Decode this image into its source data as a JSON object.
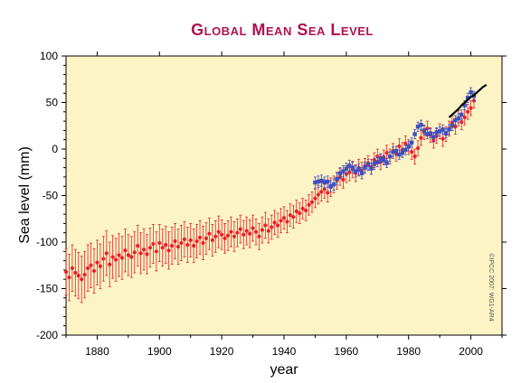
{
  "chart_data": {
    "type": "scatter",
    "title": "Global Mean Sea Level",
    "xlabel": "year",
    "ylabel": "Sea level (mm)",
    "xlim": [
      1870,
      2010
    ],
    "ylim": [
      -200,
      100
    ],
    "xticks": [
      1880,
      1900,
      1920,
      1940,
      1960,
      1980,
      2000
    ],
    "yticks": [
      100,
      50,
      0,
      -50,
      -100,
      -150,
      -200
    ],
    "credit": "©IPCC 2007: WG1-AR4",
    "grid": false,
    "legend": "none",
    "series": [
      {
        "marker": "circle",
        "color": "#e8202a",
        "x": [
          1870,
          1871,
          1872,
          1873,
          1874,
          1875,
          1876,
          1877,
          1878,
          1879,
          1880,
          1881,
          1882,
          1883,
          1884,
          1885,
          1886,
          1887,
          1888,
          1889,
          1890,
          1891,
          1892,
          1893,
          1894,
          1895,
          1896,
          1897,
          1898,
          1899,
          1900,
          1901,
          1902,
          1903,
          1904,
          1905,
          1906,
          1907,
          1908,
          1909,
          1910,
          1911,
          1912,
          1913,
          1914,
          1915,
          1916,
          1917,
          1918,
          1919,
          1920,
          1921,
          1922,
          1923,
          1924,
          1925,
          1926,
          1927,
          1928,
          1929,
          1930,
          1931,
          1932,
          1933,
          1934,
          1935,
          1936,
          1937,
          1938,
          1939,
          1940,
          1941,
          1942,
          1943,
          1944,
          1945,
          1946,
          1947,
          1948,
          1949,
          1950,
          1951,
          1952,
          1953,
          1954,
          1955,
          1956,
          1957,
          1958,
          1959,
          1960,
          1961,
          1962,
          1963,
          1964,
          1965,
          1966,
          1967,
          1968,
          1969,
          1970,
          1971,
          1972,
          1973,
          1974,
          1975,
          1976,
          1977,
          1978,
          1979,
          1980,
          1981,
          1982,
          1983,
          1984,
          1985,
          1986,
          1987,
          1988,
          1989,
          1990,
          1991,
          1992,
          1993,
          1994,
          1995,
          1996,
          1997,
          1998,
          1999,
          2000,
          2001
        ],
        "y": [
          -132,
          -138,
          -128,
          -133,
          -136,
          -140,
          -135,
          -128,
          -125,
          -131,
          -122,
          -126,
          -118,
          -112,
          -124,
          -116,
          -119,
          -114,
          -117,
          -109,
          -114,
          -116,
          -111,
          -104,
          -112,
          -108,
          -113,
          -106,
          -102,
          -110,
          -101,
          -106,
          -103,
          -109,
          -104,
          -99,
          -105,
          -101,
          -97,
          -103,
          -98,
          -104,
          -99,
          -95,
          -101,
          -96,
          -91,
          -98,
          -94,
          -89,
          -92,
          -96,
          -93,
          -89,
          -94,
          -90,
          -86,
          -92,
          -88,
          -91,
          -85,
          -89,
          -94,
          -87,
          -82,
          -88,
          -84,
          -79,
          -82,
          -77,
          -74,
          -78,
          -71,
          -73,
          -67,
          -69,
          -64,
          -66,
          -60,
          -57,
          -53,
          -49,
          -46,
          -43,
          -47,
          -41,
          -38,
          -34,
          -30,
          -33,
          -27,
          -25,
          -22,
          -26,
          -20,
          -23,
          -18,
          -15,
          -19,
          -12,
          -8,
          -14,
          -9,
          -4,
          -8,
          -2,
          -5,
          3,
          -1,
          6,
          2,
          -3,
          -8,
          1,
          12,
          18,
          22,
          15,
          9,
          14,
          19,
          11,
          16,
          22,
          28,
          24,
          33,
          29,
          34,
          40,
          44,
          52
        ],
        "err": [
          25,
          25,
          25,
          25,
          25,
          25,
          25,
          25,
          24,
          24,
          24,
          24,
          24,
          24,
          24,
          23,
          23,
          23,
          23,
          23,
          22,
          22,
          22,
          22,
          22,
          22,
          21,
          21,
          21,
          21,
          20,
          20,
          20,
          20,
          20,
          19,
          19,
          19,
          19,
          19,
          18,
          18,
          18,
          18,
          18,
          17,
          17,
          17,
          17,
          17,
          16,
          16,
          16,
          16,
          16,
          15,
          15,
          15,
          15,
          15,
          14,
          14,
          14,
          14,
          14,
          13,
          13,
          13,
          13,
          13,
          12,
          12,
          12,
          12,
          12,
          11,
          11,
          11,
          11,
          11,
          10,
          10,
          10,
          10,
          10,
          10,
          9,
          9,
          9,
          9,
          9,
          9,
          9,
          9,
          9,
          9,
          8,
          8,
          8,
          8,
          8,
          8,
          8,
          8,
          8,
          8,
          8,
          8,
          8,
          8,
          8,
          8,
          8,
          8,
          8,
          8,
          8,
          8,
          8,
          8,
          8,
          8,
          8,
          8,
          8,
          8,
          8,
          8,
          8,
          8,
          8,
          8
        ]
      },
      {
        "marker": "square",
        "color": "#3c4fc2",
        "x": [
          1950,
          1951,
          1952,
          1953,
          1954,
          1955,
          1956,
          1957,
          1958,
          1959,
          1960,
          1961,
          1962,
          1963,
          1964,
          1965,
          1966,
          1967,
          1968,
          1969,
          1970,
          1971,
          1972,
          1973,
          1974,
          1975,
          1976,
          1977,
          1978,
          1979,
          1980,
          1981,
          1982,
          1983,
          1984,
          1985,
          1986,
          1987,
          1988,
          1989,
          1990,
          1991,
          1992,
          1993,
          1994,
          1995,
          1996,
          1997,
          1998,
          1999,
          2000,
          2001
        ],
        "y": [
          -36,
          -35,
          -34,
          -36,
          -35,
          -40,
          -38,
          -32,
          -26,
          -24,
          -21,
          -18,
          -20,
          -24,
          -22,
          -26,
          -20,
          -17,
          -21,
          -16,
          -14,
          -10,
          -12,
          -15,
          -8,
          -3,
          -2,
          -6,
          -4,
          -1,
          3,
          7,
          16,
          24,
          26,
          20,
          16,
          17,
          13,
          18,
          19,
          21,
          17,
          21,
          25,
          31,
          33,
          37,
          47,
          55,
          61,
          57
        ],
        "err": [
          6,
          6,
          6,
          6,
          6,
          6,
          6,
          6,
          6,
          6,
          6,
          6,
          6,
          6,
          6,
          6,
          6,
          6,
          6,
          6,
          5,
          5,
          5,
          5,
          5,
          5,
          5,
          5,
          5,
          5,
          5,
          5,
          5,
          5,
          5,
          5,
          5,
          5,
          5,
          5,
          5,
          5,
          5,
          5,
          5,
          5,
          5,
          5,
          5,
          5,
          5,
          5
        ]
      },
      {
        "marker": "line",
        "color": "#000000",
        "x": [
          1993,
          1994,
          1995,
          1996,
          1997,
          1998,
          1999,
          2000,
          2001,
          2002,
          2003,
          2004,
          2005
        ],
        "y": [
          34,
          37,
          40,
          43,
          47,
          50,
          53,
          56,
          58,
          61,
          64,
          67,
          69
        ]
      }
    ]
  }
}
